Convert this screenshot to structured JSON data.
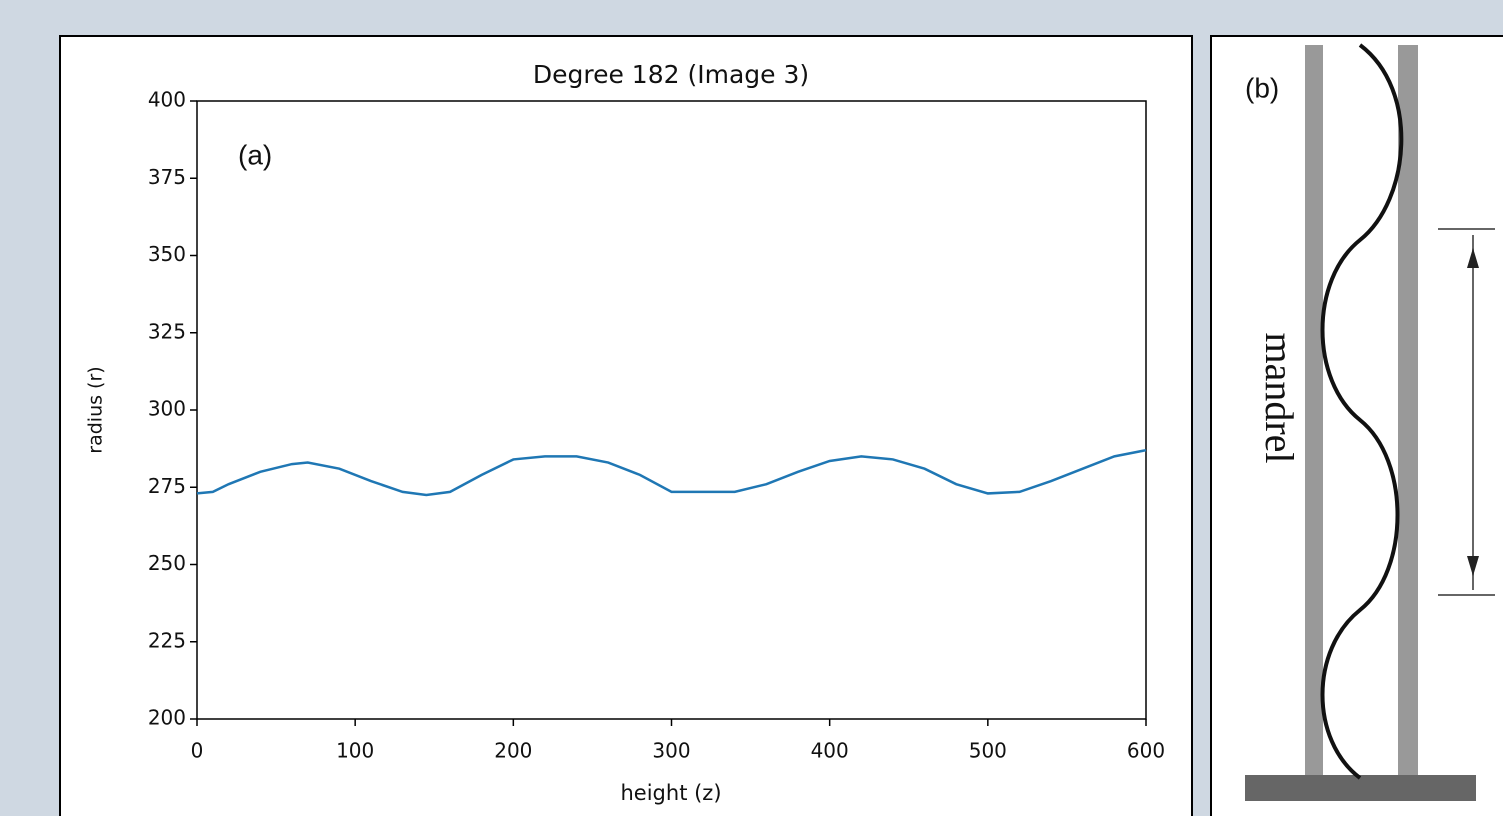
{
  "chart_data": {
    "type": "line",
    "title": "Degree 182 (Image 3)",
    "xlabel": "height (z)",
    "ylabel": "radius (r)",
    "annotation": "(a)",
    "x": [
      0,
      10,
      20,
      40,
      60,
      70,
      90,
      110,
      130,
      145,
      160,
      180,
      200,
      220,
      240,
      260,
      280,
      300,
      320,
      340,
      360,
      380,
      400,
      420,
      440,
      460,
      480,
      500,
      520,
      540,
      560,
      580,
      600
    ],
    "values": [
      273,
      273.5,
      276,
      280,
      282.5,
      283,
      281,
      277,
      273.5,
      272.5,
      273.5,
      279,
      284,
      285,
      285,
      283,
      279,
      273.5,
      273.5,
      273.5,
      276,
      280,
      283.5,
      285,
      284,
      281,
      276,
      273,
      273.5,
      277,
      281,
      285,
      287
    ],
    "color": "#1f77b4",
    "xlim": [
      0,
      600
    ],
    "ylim": [
      200,
      400
    ],
    "xticks": [
      0,
      100,
      200,
      300,
      400,
      500,
      600
    ],
    "yticks": [
      200,
      225,
      250,
      275,
      300,
      325,
      350,
      375,
      400
    ]
  },
  "diagram": {
    "label": "(b)",
    "text": "mandrel"
  }
}
